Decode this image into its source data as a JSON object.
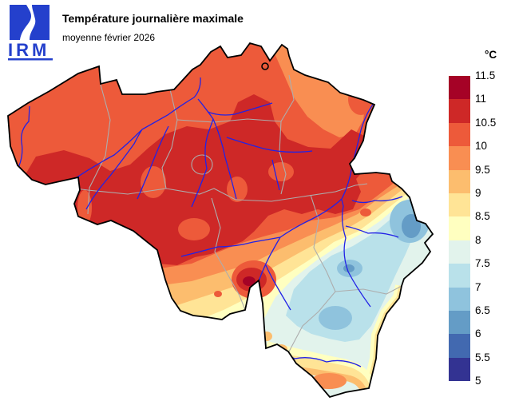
{
  "header": {
    "title": "Température journalière maximale",
    "subtitle": "moyenne février 2026",
    "logo_text": "IRM"
  },
  "colors": {
    "logo_blue": "#2440cc",
    "background": "#ffffff"
  },
  "legend": {
    "unit": "°C",
    "boundary_labels": [
      "11.5",
      "11",
      "10.5",
      "10",
      "9.5",
      "9",
      "8.5",
      "8",
      "7.5",
      "7",
      "6.5",
      "6",
      "5.5",
      "5"
    ],
    "bin_colors": [
      "#a50226",
      "#ce2827",
      "#ed5a3a",
      "#f98e52",
      "#fcbd6e",
      "#ffe496",
      "#ffffc0",
      "#e2f3ec",
      "#b9e1ea",
      "#8fc3dd",
      "#649cc6",
      "#4269b0",
      "#333392"
    ]
  },
  "map": {
    "country": "Belgium",
    "border_color": "#000000",
    "province_border_color": "#adadad",
    "river_color": "#2222e6"
  },
  "chart_data": {
    "type": "heatmap",
    "title": "Température journalière maximale",
    "subtitle": "moyenne février 2026",
    "unit": "°C",
    "legend_position": "right",
    "scale_boundaries": [
      11.5,
      11,
      10.5,
      10,
      9.5,
      9,
      8.5,
      8,
      7.5,
      7,
      6.5,
      6,
      5.5,
      5
    ],
    "scale_colors": [
      "#a50226",
      "#ce2827",
      "#ed5a3a",
      "#f98e52",
      "#fcbd6e",
      "#ffe496",
      "#ffffc0",
      "#e2f3ec",
      "#b9e1ea",
      "#8fc3dd",
      "#649cc6",
      "#4269b0",
      "#333392"
    ],
    "regions": [
      {
        "area": "coast and northern Flanders",
        "value_c": "10 – 10.5"
      },
      {
        "area": "central Belgium (inner Flanders, Brussels, Hainaut, Hesbaye, Liège valley)",
        "value_c": "10.5 – 11"
      },
      {
        "area": "northeastern Kempen / north Limburg",
        "value_c": "9.5 – 10"
      },
      {
        "area": "Entre-Sambre-et-Meuse warm pocket",
        "value_c": "10.5 – 11.5"
      },
      {
        "area": "Condroz / pre-Ardennes belt",
        "value_c": "8 – 10"
      },
      {
        "area": "central Ardennes",
        "value_c": "6.5 – 8"
      },
      {
        "area": "Hautes Fagnes (eastern border)",
        "value_c": "6 – 6.5"
      },
      {
        "area": "southern Gaume tail",
        "value_c": "9 – 10"
      }
    ]
  }
}
